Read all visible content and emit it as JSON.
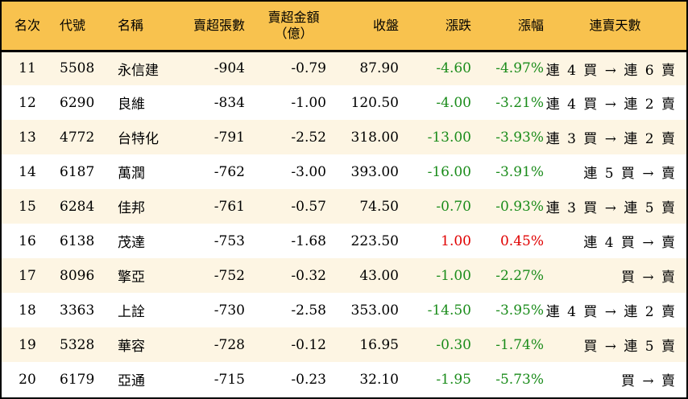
{
  "colors": {
    "header_bg": "#F8C24E",
    "row_alt_bg": "#FDF5E3",
    "down": "#1B8C1B",
    "up": "#E00000"
  },
  "headers": {
    "rank": "名次",
    "code": "代號",
    "name": "名稱",
    "net_sell_lots": "賣超張數",
    "net_sell_amount": "賣超金額",
    "net_sell_amount_unit": "（億）",
    "close": "收盤",
    "change": "漲跌",
    "change_pct": "漲幅",
    "streak": "連賣天數"
  },
  "rows": [
    {
      "rank": "11",
      "code": "5508",
      "name": "永信建",
      "lots": "-904",
      "amount": "-0.79",
      "close": "87.90",
      "change": "-4.60",
      "pct": "-4.97%",
      "streak": "連 4 買 → 連 6 賣",
      "dir": "down"
    },
    {
      "rank": "12",
      "code": "6290",
      "name": "良維",
      "lots": "-834",
      "amount": "-1.00",
      "close": "120.50",
      "change": "-4.00",
      "pct": "-3.21%",
      "streak": "連 4 買 → 連 2 賣",
      "dir": "down"
    },
    {
      "rank": "13",
      "code": "4772",
      "name": "台特化",
      "lots": "-791",
      "amount": "-2.52",
      "close": "318.00",
      "change": "-13.00",
      "pct": "-3.93%",
      "streak": "連 3 買 → 連 2 賣",
      "dir": "down"
    },
    {
      "rank": "14",
      "code": "6187",
      "name": "萬潤",
      "lots": "-762",
      "amount": "-3.00",
      "close": "393.00",
      "change": "-16.00",
      "pct": "-3.91%",
      "streak": "連 5 買 → 賣",
      "dir": "down"
    },
    {
      "rank": "15",
      "code": "6284",
      "name": "佳邦",
      "lots": "-761",
      "amount": "-0.57",
      "close": "74.50",
      "change": "-0.70",
      "pct": "-0.93%",
      "streak": "連 3 買 → 連 5 賣",
      "dir": "down"
    },
    {
      "rank": "16",
      "code": "6138",
      "name": "茂達",
      "lots": "-753",
      "amount": "-1.68",
      "close": "223.50",
      "change": "1.00",
      "pct": "0.45%",
      "streak": "連 4 買 → 賣",
      "dir": "up"
    },
    {
      "rank": "17",
      "code": "8096",
      "name": "擎亞",
      "lots": "-752",
      "amount": "-0.32",
      "close": "43.00",
      "change": "-1.00",
      "pct": "-2.27%",
      "streak": "買 → 賣",
      "dir": "down"
    },
    {
      "rank": "18",
      "code": "3363",
      "name": "上詮",
      "lots": "-730",
      "amount": "-2.58",
      "close": "353.00",
      "change": "-14.50",
      "pct": "-3.95%",
      "streak": "連 4 買 → 連 2 賣",
      "dir": "down"
    },
    {
      "rank": "19",
      "code": "5328",
      "name": "華容",
      "lots": "-728",
      "amount": "-0.12",
      "close": "16.95",
      "change": "-0.30",
      "pct": "-1.74%",
      "streak": "買 → 連 5 賣",
      "dir": "down"
    },
    {
      "rank": "20",
      "code": "6179",
      "name": "亞通",
      "lots": "-715",
      "amount": "-0.23",
      "close": "32.10",
      "change": "-1.95",
      "pct": "-5.73%",
      "streak": "買 → 賣",
      "dir": "down"
    }
  ]
}
